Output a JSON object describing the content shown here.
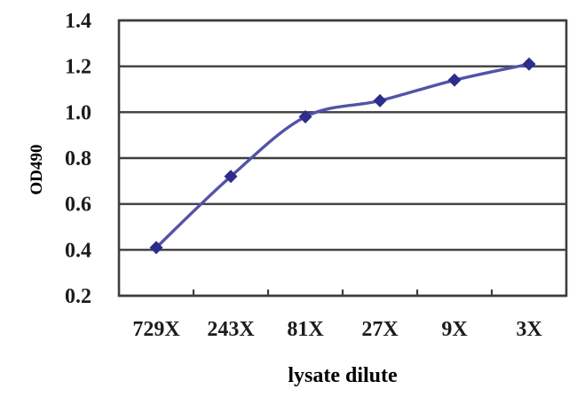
{
  "chart_data": {
    "type": "line",
    "title": "",
    "categories": [
      "729X",
      "243X",
      "81X",
      "27X",
      "9X",
      "3X"
    ],
    "values": [
      0.41,
      0.72,
      0.98,
      1.05,
      1.14,
      1.21
    ],
    "series": [
      {
        "name": "OD490",
        "values": [
          0.41,
          0.72,
          0.98,
          1.05,
          1.14,
          1.21
        ]
      }
    ],
    "xlabel": "lysate dilute",
    "ylabel": "OD490",
    "ylim": [
      0.2,
      1.4
    ],
    "yticks": [
      0.2,
      0.4,
      0.6,
      0.8,
      1.0,
      1.2,
      1.4
    ],
    "ytick_labels": [
      "0.2",
      "0.4",
      "0.6",
      "0.8",
      "1.0",
      "1.2",
      "1.4"
    ],
    "grid": "horizontal",
    "legend_position": "none",
    "marker_shape": "diamond",
    "line_style": "smooth",
    "colors": {
      "line": "#5253a8",
      "marker": "#2d2d8c",
      "grid": "#3d3d3d",
      "frame": "#3d3d3d",
      "text": "#1c1c1c",
      "background": "#ffffff"
    }
  }
}
